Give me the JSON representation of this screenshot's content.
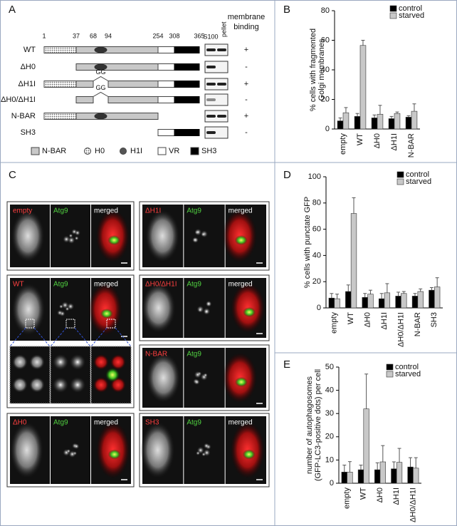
{
  "panels": [
    "A",
    "B",
    "C",
    "D",
    "E"
  ],
  "panel_a": {
    "positions": [
      "1",
      "37",
      "68",
      "94",
      "254",
      "308",
      "365"
    ],
    "blot_headers": [
      "S100",
      "pellet"
    ],
    "binding_header": [
      "membrane",
      "binding"
    ],
    "constructs": [
      {
        "name": "WT",
        "binding": "+"
      },
      {
        "name": "ΔH0",
        "binding": "-"
      },
      {
        "name": "ΔH1I",
        "binding": "+",
        "mutation": "GG"
      },
      {
        "name": "ΔH0/ΔH1I",
        "binding": "-",
        "mutation": "GG"
      },
      {
        "name": "N-BAR",
        "binding": "+"
      },
      {
        "name": "SH3",
        "binding": "-"
      }
    ],
    "legend": [
      "N-BAR",
      "H0",
      "H1I",
      "VR",
      "SH3"
    ]
  },
  "panel_c": {
    "panels": [
      {
        "labels": [
          "empty",
          "Atg9",
          "merged"
        ]
      },
      {
        "labels": [
          "WT",
          "Atg9",
          "merged"
        ]
      },
      {
        "labels": [
          "ΔH0",
          "Atg9",
          "merged"
        ]
      },
      {
        "labels": [
          "ΔH1I",
          "Atg9",
          "merged"
        ]
      },
      {
        "labels": [
          "ΔH0/ΔH1I",
          "Atg9",
          "merged"
        ]
      },
      {
        "labels": [
          "N-BAR",
          "Atg9"
        ]
      },
      {
        "labels": [
          "SH3",
          "Atg9",
          "merged"
        ]
      }
    ]
  },
  "chart_data": [
    {
      "type": "bar",
      "ylabel": [
        "% cells with fragmented",
        "Golgi membranes"
      ],
      "categories": [
        "empty",
        "WT",
        "ΔH0",
        "ΔH1I",
        "N-BAR"
      ],
      "series": [
        {
          "name": "control",
          "color": "#000000",
          "values": [
            5.5,
            8.5,
            7.5,
            7,
            8
          ],
          "errors": [
            2,
            2,
            2,
            1.5,
            1
          ]
        },
        {
          "name": "starved",
          "color": "#c8c8c8",
          "values": [
            11,
            56.5,
            10,
            10.5,
            12
          ],
          "errors": [
            3.5,
            3.5,
            6,
            1,
            5
          ]
        }
      ],
      "ylim": [
        0,
        80
      ],
      "yticks": [
        0,
        20,
        40,
        60,
        80
      ],
      "legend": "upper right"
    },
    {
      "type": "bar",
      "ylabel": [
        "% cells with punctate GFP"
      ],
      "categories": [
        "empty",
        "WT",
        "ΔH0",
        "ΔH1I",
        "ΔH0/ΔH1I",
        "N-BAR",
        "SH3"
      ],
      "series": [
        {
          "name": "control",
          "color": "#000000",
          "values": [
            7.5,
            12.5,
            8,
            7,
            9,
            9,
            13.5
          ],
          "errors": [
            3.5,
            5,
            3,
            4,
            3,
            2,
            2
          ]
        },
        {
          "name": "starved",
          "color": "#c8c8c8",
          "values": [
            7,
            72,
            10.5,
            11.5,
            11,
            12.5,
            16
          ],
          "errors": [
            3.5,
            12,
            3,
            7,
            1.5,
            2,
            7
          ]
        }
      ],
      "ylim": [
        0,
        100
      ],
      "yticks": [
        0,
        20,
        40,
        60,
        80,
        100
      ],
      "legend": "upper right"
    },
    {
      "type": "bar",
      "ylabel": [
        "number of autophagosomes",
        "(GFP-LC3-positive dots) per cell"
      ],
      "categories": [
        "empty",
        "WT",
        "ΔH0",
        "ΔH1I",
        "ΔH0/ΔH1I"
      ],
      "series": [
        {
          "name": "control",
          "color": "#000000",
          "values": [
            4.8,
            5.8,
            5.8,
            6.2,
            7
          ],
          "errors": [
            3,
            2,
            3,
            3,
            4
          ]
        },
        {
          "name": "starved",
          "color": "#c8c8c8",
          "values": [
            4.8,
            32,
            9.2,
            9,
            6.5
          ],
          "errors": [
            4.5,
            15,
            7,
            6,
            4.5
          ]
        }
      ],
      "ylim": [
        0,
        50
      ],
      "yticks": [
        0,
        10,
        20,
        30,
        40,
        50
      ],
      "legend": "upper right"
    }
  ]
}
